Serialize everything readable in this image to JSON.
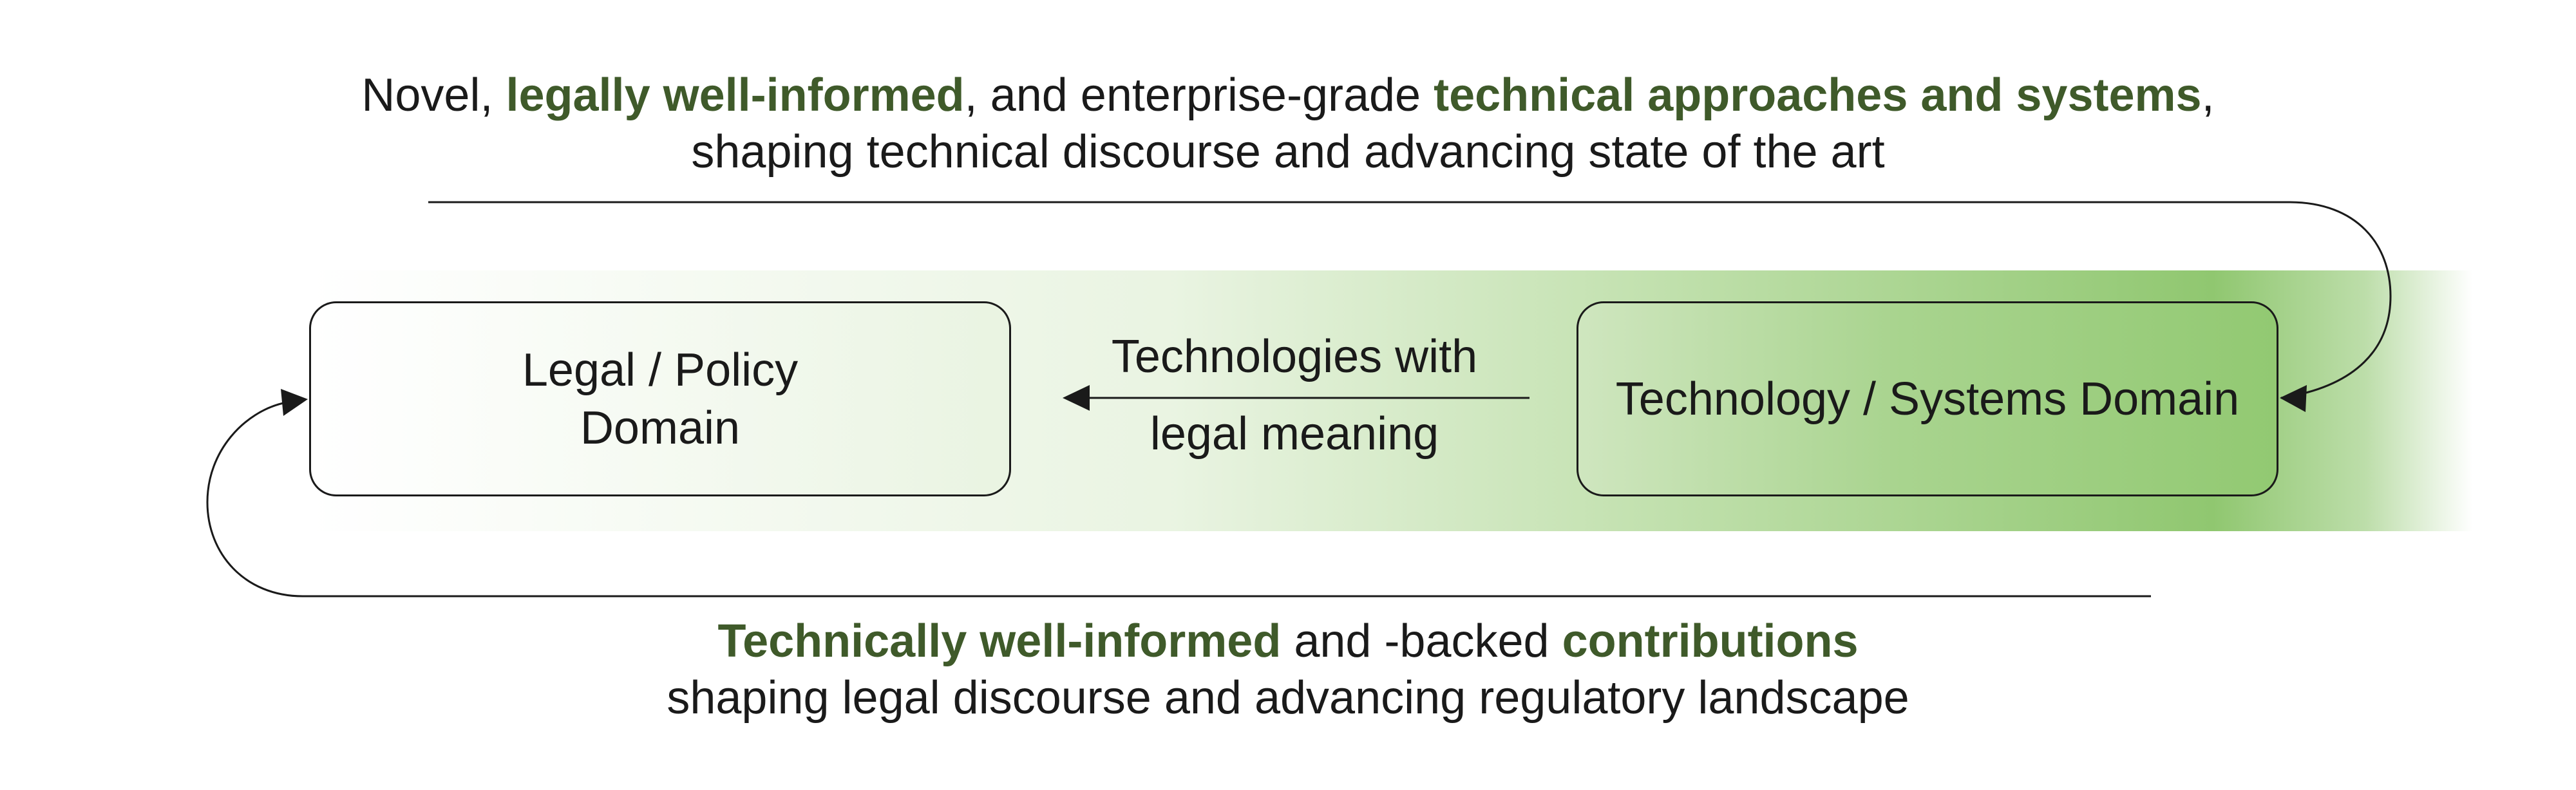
{
  "top_caption": {
    "p1": "Novel, ",
    "b1": "legally well-informed",
    "p2": ", and enterprise-grade ",
    "b2": "technical approaches and systems",
    "p3": ",",
    "line2": "shaping technical discourse and advancing state of the art"
  },
  "legal_box": {
    "line1": "Legal / Policy",
    "line2": "Domain"
  },
  "tech_box": {
    "label": "Technology / Systems Domain"
  },
  "middle_arrow": {
    "line1": "Technologies with",
    "line2": "legal meaning"
  },
  "bottom_caption": {
    "b1": "Technically well-informed",
    "p1": " and -backed ",
    "b2": "contributions",
    "line2": "shaping legal discourse and advancing regulatory landscape"
  },
  "colors": {
    "highlight_text": "#3f5a2a",
    "band_green": "#90c770",
    "line": "#1a1a1a"
  }
}
